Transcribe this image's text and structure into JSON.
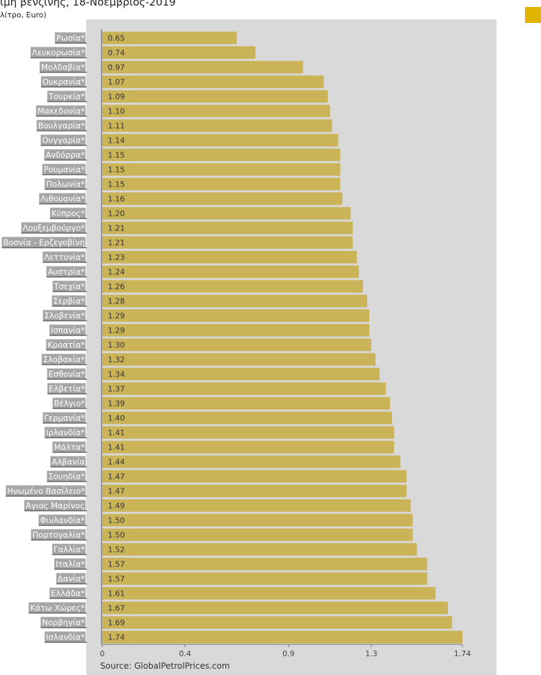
{
  "chart_data": {
    "type": "bar",
    "orientation": "horizontal",
    "title": "ιμή βενζίνης, 18-Νοέμβριος-2019",
    "subtitle": "λίτρο, Euro)",
    "source": "Source: GlobalPetrolPrices.com",
    "categories": [
      "Ρωσία*",
      "Λευκορωσία*",
      "Μολδαβία*",
      "Ουκρανία*",
      "Τουρκία*",
      "Μακεδονία*",
      "Βουλγαρία*",
      "Ουγγαρία*",
      "Ανδόρρα*",
      "Ρουμανία*",
      "Πολωνία*",
      "Λιθουανία*",
      "Κύπρος*",
      "Λουξεμβούργο*",
      "Βοσνία - Ερζεγοβίνη",
      "Λεττονία*",
      "Αυστρία*",
      "Τσεχία*",
      "Σερβία*",
      "Σλοβενία*",
      "Ισπανία*",
      "Κροατία*",
      "Σλοβακία*",
      "Εσθονία*",
      "Ελβετία*",
      "Βέλγιο*",
      "Γερμανία*",
      "Ιρλανδία*",
      "Μάλτα*",
      "Αλβανία",
      "Σουηδία*",
      "Ηνωμένο Βασίλειο*",
      "Άγιος Μαρίνος",
      "Φινλανδία*",
      "Πορτογαλία*",
      "Γαλλία*",
      "Ιταλία*",
      "Δανία*",
      "Ελλάδα*",
      "Κάτω Χώρες*",
      "Νορβηγία*",
      "Ισλανδία*"
    ],
    "values": [
      0.65,
      0.74,
      0.97,
      1.07,
      1.09,
      1.1,
      1.11,
      1.14,
      1.15,
      1.15,
      1.15,
      1.16,
      1.2,
      1.21,
      1.21,
      1.23,
      1.24,
      1.26,
      1.28,
      1.29,
      1.29,
      1.3,
      1.32,
      1.34,
      1.37,
      1.39,
      1.4,
      1.41,
      1.41,
      1.44,
      1.47,
      1.47,
      1.49,
      1.5,
      1.5,
      1.52,
      1.57,
      1.57,
      1.61,
      1.67,
      1.69,
      1.74
    ],
    "value_labels": [
      "0.65",
      "0.74",
      "0.97",
      "1.07",
      "1.09",
      "1.10",
      "1.11",
      "1.14",
      "1.15",
      "1.15",
      "1.15",
      "1.16",
      "1.20",
      "1.21",
      "1.21",
      "1.23",
      "1.24",
      "1.26",
      "1.28",
      "1.29",
      "1.29",
      "1.30",
      "1.32",
      "1.34",
      "1.37",
      "1.39",
      "1.40",
      "1.41",
      "1.41",
      "1.44",
      "1.47",
      "1.47",
      "1.49",
      "1.50",
      "1.50",
      "1.52",
      "1.57",
      "1.57",
      "1.61",
      "1.67",
      "1.69",
      "1.74"
    ],
    "xticks": [
      0,
      0.4,
      0.9,
      1.3,
      1.74
    ],
    "xtick_labels": [
      "0",
      "0.4",
      "0.9",
      "1.3",
      "1.74"
    ],
    "xlim": [
      0,
      1.74
    ],
    "grid": false,
    "colors": {
      "bar": "#cbb358",
      "plot_background": "#d9d9d9",
      "label_background": "#a6a6a6",
      "legend": "#e0b400"
    }
  }
}
